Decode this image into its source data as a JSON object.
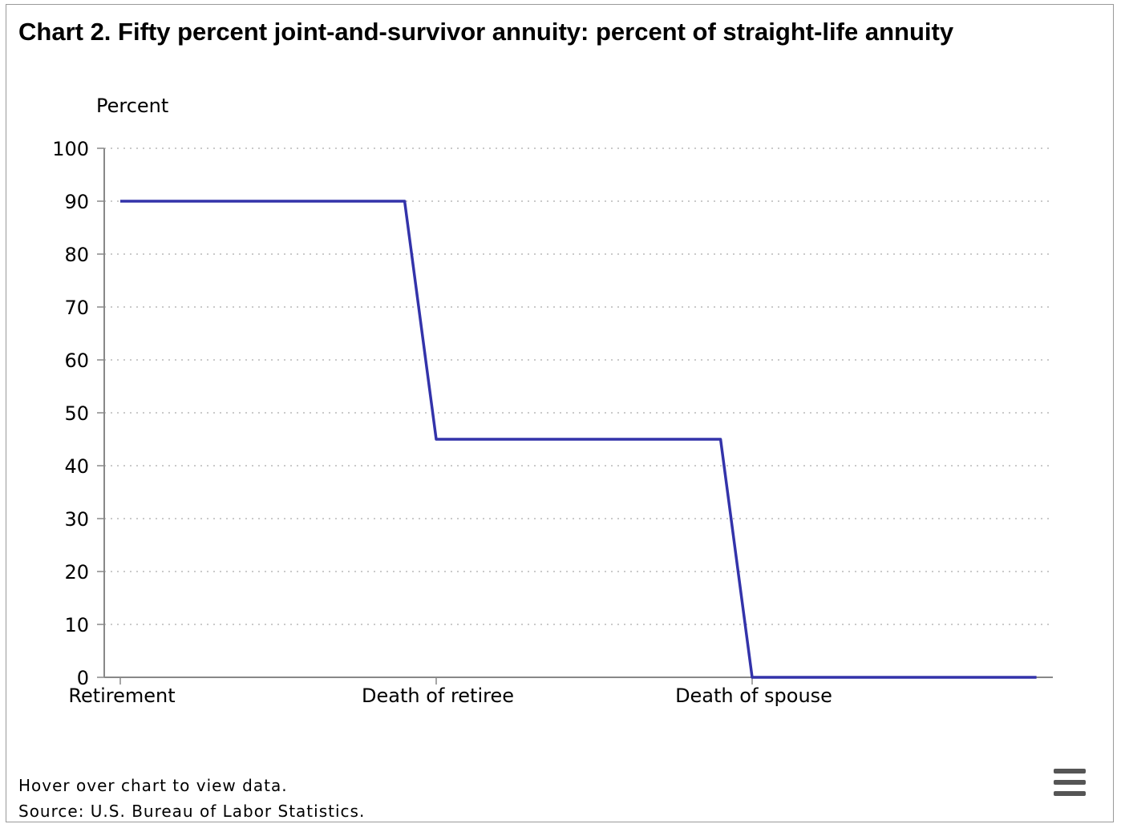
{
  "chart_data": {
    "type": "line",
    "title": "Chart 2. Fifty percent joint-and-survivor annuity: percent of straight-life annuity",
    "ylabel": "Percent",
    "xlabel": "",
    "categories": [
      "Retirement",
      "Death of retiree",
      "Death of spouse"
    ],
    "ylim": [
      0,
      100
    ],
    "yticks": [
      0,
      10,
      20,
      30,
      40,
      50,
      60,
      70,
      80,
      90,
      100
    ],
    "grid": true,
    "series": [
      {
        "color": "#3333aa",
        "points": [
          {
            "x": 0,
            "y": 90
          },
          {
            "x": 0.9,
            "y": 90
          },
          {
            "x": 1.0,
            "y": 45
          },
          {
            "x": 1.9,
            "y": 45
          },
          {
            "x": 2.0,
            "y": 0
          },
          {
            "x": 2.9,
            "y": 0
          }
        ]
      }
    ]
  },
  "footer": {
    "hover_note": "Hover over chart to view data.",
    "source": "Source: U.S. Bureau of Labor Statistics."
  },
  "menu": {
    "icon": "hamburger-menu-icon"
  }
}
